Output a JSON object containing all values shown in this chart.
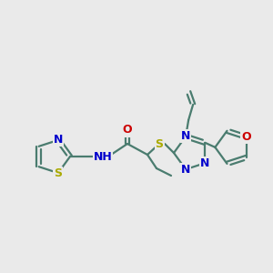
{
  "background_color": "#eaeaea",
  "bond_color": "#4a7c6f",
  "atom_colors": {
    "N": "#0000cc",
    "O": "#cc0000",
    "S": "#aaaa00",
    "C": "#333333"
  },
  "figsize": [
    3.0,
    3.0
  ],
  "dpi": 100,
  "lw": 1.6,
  "fontsize": 9
}
